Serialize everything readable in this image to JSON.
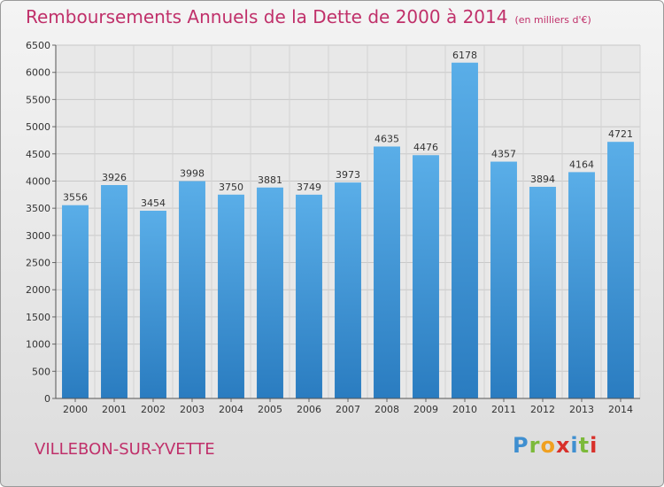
{
  "chart_data": {
    "type": "bar",
    "title": "Remboursements Annuels de la Dette de 2000 à 2014",
    "subtitle": "(en milliers d'€)",
    "categories": [
      "2000",
      "2001",
      "2002",
      "2003",
      "2004",
      "2005",
      "2006",
      "2007",
      "2008",
      "2009",
      "2010",
      "2011",
      "2012",
      "2013",
      "2014"
    ],
    "values": [
      3556,
      3926,
      3454,
      3998,
      3750,
      3881,
      3749,
      3973,
      4635,
      4476,
      6178,
      4357,
      3894,
      4164,
      4721
    ],
    "ylim": [
      0,
      6500
    ],
    "yticks": [
      0,
      500,
      1000,
      1500,
      2000,
      2500,
      3000,
      3500,
      4000,
      4500,
      5000,
      5500,
      6000,
      6500
    ],
    "grid": true,
    "bar_color_top": "#5aaee8",
    "bar_color_bottom": "#2a7cc0"
  },
  "commune": "VILLEBON-SUR-YVETTE",
  "logo": "Proxiti"
}
